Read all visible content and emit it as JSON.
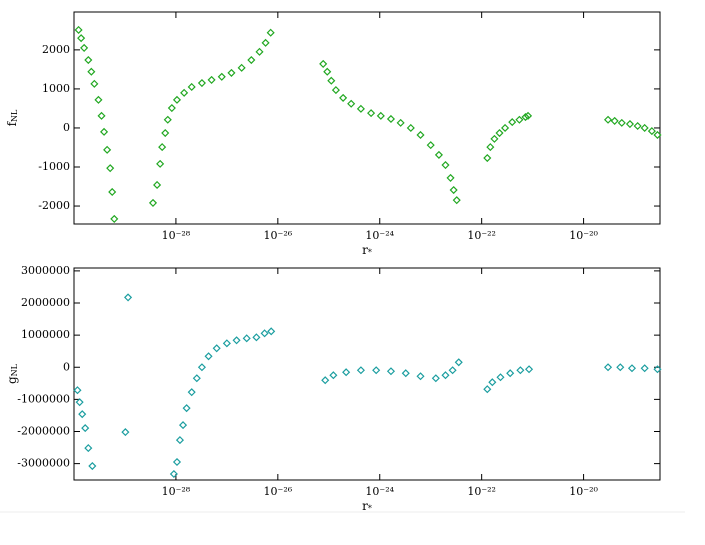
{
  "chart_data": [
    {
      "type": "scatter",
      "xscale": "log",
      "color": "#22a822",
      "marker": "diamond",
      "ylabel": {
        "text": "f",
        "sub": "NL"
      },
      "xlabel": {
        "text": "r",
        "sub": "*"
      },
      "xlim": [
        1e-30,
        3.16e-19
      ],
      "xticks": [
        {
          "value": 1e-28,
          "label": "10⁻²⁸"
        },
        {
          "value": 1e-26,
          "label": "10⁻²⁶"
        },
        {
          "value": 1e-24,
          "label": "10⁻²⁴"
        },
        {
          "value": 1e-22,
          "label": "10⁻²²"
        },
        {
          "value": 1e-20,
          "label": "10⁻²⁰"
        }
      ],
      "ylim": [
        -2460,
        2970
      ],
      "yticks": [
        -2000,
        -1000,
        0,
        1000,
        2000
      ],
      "x": [
        1.23e-30,
        1.38e-30,
        1.58e-30,
        1.91e-30,
        2.19e-30,
        2.51e-30,
        3.02e-30,
        3.47e-30,
        3.89e-30,
        4.47e-30,
        5.13e-30,
        5.62e-30,
        6.17e-30,
        3.55e-29,
        4.27e-29,
        4.9e-29,
        5.37e-29,
        6.17e-29,
        6.92e-29,
        8.32e-29,
        1.05e-28,
        1.45e-28,
        2.04e-28,
        3.24e-28,
        5.01e-28,
        7.94e-28,
        1.23e-27,
        1.95e-27,
        3.02e-27,
        4.37e-27,
        5.75e-27,
        7.24e-27,
        7.76e-26,
        9.33e-26,
        1.12e-25,
        1.38e-25,
        1.91e-25,
        2.75e-25,
        4.27e-25,
        6.76e-25,
        1.05e-24,
        1.66e-24,
        2.57e-24,
        4.07e-24,
        6.31e-24,
        1e-23,
        1.45e-23,
        1.95e-23,
        2.45e-23,
        2.82e-23,
        3.24e-23,
        1.29e-22,
        1.48e-22,
        1.78e-22,
        2.24e-22,
        2.88e-22,
        3.98e-22,
        5.5e-22,
        7.24e-22,
        8.13e-22,
        3.02e-20,
        4.07e-20,
        5.62e-20,
        8.13e-20,
        1.15e-19,
        1.58e-19,
        2.19e-19,
        2.82e-19
      ],
      "values": [
        2510,
        2300,
        2050,
        1740,
        1440,
        1130,
        720,
        310,
        -100,
        -560,
        -1030,
        -1640,
        -2330,
        -1920,
        -1460,
        -920,
        -490,
        -130,
        210,
        510,
        720,
        900,
        1050,
        1150,
        1230,
        1310,
        1410,
        1540,
        1740,
        1950,
        2180,
        2440,
        1640,
        1440,
        1210,
        970,
        770,
        620,
        490,
        380,
        310,
        230,
        130,
        0,
        -180,
        -440,
        -690,
        -950,
        -1280,
        -1590,
        -1850,
        -770,
        -490,
        -280,
        -130,
        0,
        150,
        210,
        280,
        310,
        210,
        180,
        130,
        100,
        50,
        0,
        -80,
        -180
      ]
    },
    {
      "type": "scatter",
      "xscale": "log",
      "color": "#1c9ea0",
      "marker": "diamond",
      "ylabel": {
        "text": "g",
        "sub": "NL"
      },
      "xlabel": {
        "text": "r",
        "sub": "*"
      },
      "xlim": [
        1e-30,
        3.16e-19
      ],
      "xticks": [
        {
          "value": 1e-28,
          "label": "10⁻²⁸"
        },
        {
          "value": 1e-26,
          "label": "10⁻²⁶"
        },
        {
          "value": 1e-24,
          "label": "10⁻²⁴"
        },
        {
          "value": 1e-22,
          "label": "10⁻²²"
        },
        {
          "value": 1e-20,
          "label": "10⁻²⁰"
        }
      ],
      "ylim": [
        -3510000,
        3090000
      ],
      "yticks": [
        -3000000,
        -2000000,
        -1000000,
        0,
        1000000,
        2000000,
        3000000
      ],
      "x": [
        1.17e-30,
        1.29e-30,
        1.45e-30,
        1.66e-30,
        1.91e-30,
        2.29e-30,
        1.02e-29,
        1.15e-29,
        9.12e-29,
        1.05e-28,
        1.2e-28,
        1.38e-28,
        1.62e-28,
        2.04e-28,
        2.57e-28,
        3.24e-28,
        4.37e-28,
        6.31e-28,
        1e-27,
        1.55e-27,
        2.45e-27,
        3.8e-27,
        5.5e-27,
        7.41e-27,
        8.51e-26,
        1.23e-25,
        2.19e-25,
        4.27e-25,
        8.51e-25,
        1.66e-24,
        3.24e-24,
        6.31e-24,
        1.26e-23,
        1.95e-23,
        2.69e-23,
        3.55e-23,
        1.29e-22,
        1.62e-22,
        2.34e-22,
        3.63e-22,
        5.75e-22,
        8.51e-22,
        3.02e-20,
        5.25e-20,
        8.91e-20,
        1.58e-19,
        2.82e-19
      ],
      "values": [
        -714000,
        -1087000,
        -1460000,
        -1894000,
        -2516000,
        -3075000,
        -2019000,
        2174000,
        -3323000,
        -2950000,
        -2267000,
        -1801000,
        -1273000,
        -776000,
        -342000,
        0,
        342000,
        590000,
        745000,
        839000,
        901000,
        932000,
        1056000,
        1118000,
        -404000,
        -248000,
        -155000,
        -93000,
        -93000,
        -124000,
        -186000,
        -280000,
        -342000,
        -248000,
        -93000,
        155000,
        -683000,
        -466000,
        -311000,
        -186000,
        -93000,
        -62000,
        0,
        0,
        -31000,
        -31000,
        -62000
      ]
    }
  ]
}
